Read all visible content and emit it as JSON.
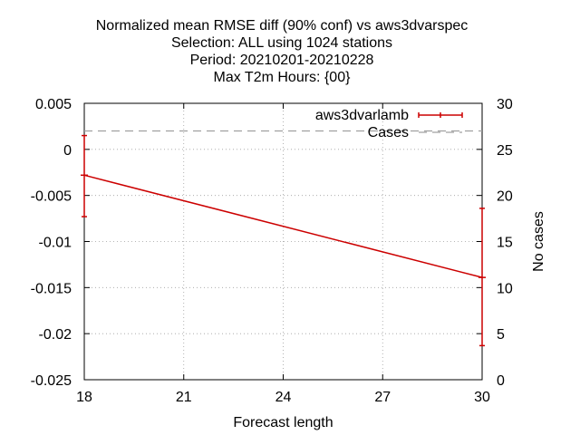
{
  "chart_data": {
    "type": "line",
    "title_lines": [
      "Normalized mean RMSE diff (90% conf) vs aws3dvarspec",
      "Selection: ALL using  1024 stations",
      "Period: 20210201-20210228",
      "Max T2m   Hours: {00}"
    ],
    "xlabel": "Forecast length",
    "ylabel": "",
    "y2label": "No cases",
    "xlim": [
      18,
      30
    ],
    "ylim": [
      -0.025,
      0.005
    ],
    "y2lim": [
      0,
      30
    ],
    "xticks": [
      "18",
      "21",
      "24",
      "27",
      "30"
    ],
    "yticks": [
      "0.005",
      "0",
      "-0.005",
      "-0.01",
      "-0.015",
      "-0.02",
      "-0.025"
    ],
    "y2ticks": [
      "30",
      "25",
      "20",
      "15",
      "10",
      "5",
      "0"
    ],
    "grid": true,
    "legend_position": "top-right",
    "series": [
      {
        "name": "aws3dvarlamb",
        "color": "#cc0000",
        "style": "line-with-errorbars",
        "axis": "y",
        "x": [
          18,
          30
        ],
        "y": [
          -0.0028,
          -0.0139
        ],
        "ylow": [
          -0.0073,
          -0.0213
        ],
        "yhigh": [
          0.0015,
          -0.0064
        ]
      },
      {
        "name": "Cases",
        "color": "#a0a0a0",
        "style": "dashed",
        "axis": "y2",
        "x": [
          18,
          30
        ],
        "y": [
          27,
          27
        ]
      }
    ]
  }
}
